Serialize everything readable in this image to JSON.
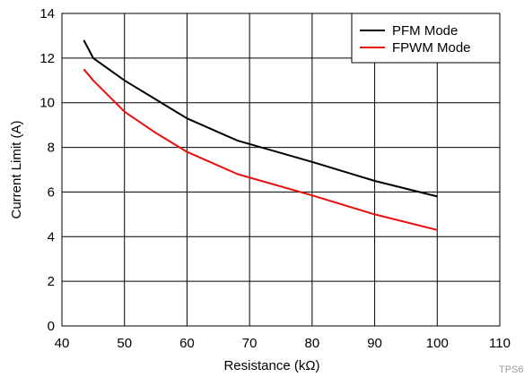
{
  "chart_data": {
    "type": "line",
    "xlabel": "Resistance (kΩ)",
    "ylabel": "Current Limit (A)",
    "xlim": [
      40,
      110
    ],
    "ylim": [
      0,
      14
    ],
    "x_ticks": [
      40,
      50,
      60,
      70,
      80,
      90,
      100,
      110
    ],
    "y_ticks": [
      0,
      2,
      4,
      6,
      8,
      10,
      12,
      14
    ],
    "grid": true,
    "legend": "top-right",
    "series": [
      {
        "name": "PFM Mode",
        "color": "#000000",
        "x": [
          43.5,
          45,
          50,
          55,
          60,
          68.1,
          80,
          90,
          100
        ],
        "y": [
          12.8,
          12.0,
          11.0,
          10.15,
          9.3,
          8.3,
          7.35,
          6.5,
          5.8
        ]
      },
      {
        "name": "FPWM Mode",
        "color": "#e8100d",
        "x": [
          43.5,
          45,
          50,
          55,
          60,
          68.1,
          80,
          90,
          100
        ],
        "y": [
          11.5,
          11.0,
          9.6,
          8.65,
          7.8,
          6.8,
          5.85,
          5.0,
          4.3
        ]
      }
    ]
  },
  "watermark": "TPS6"
}
